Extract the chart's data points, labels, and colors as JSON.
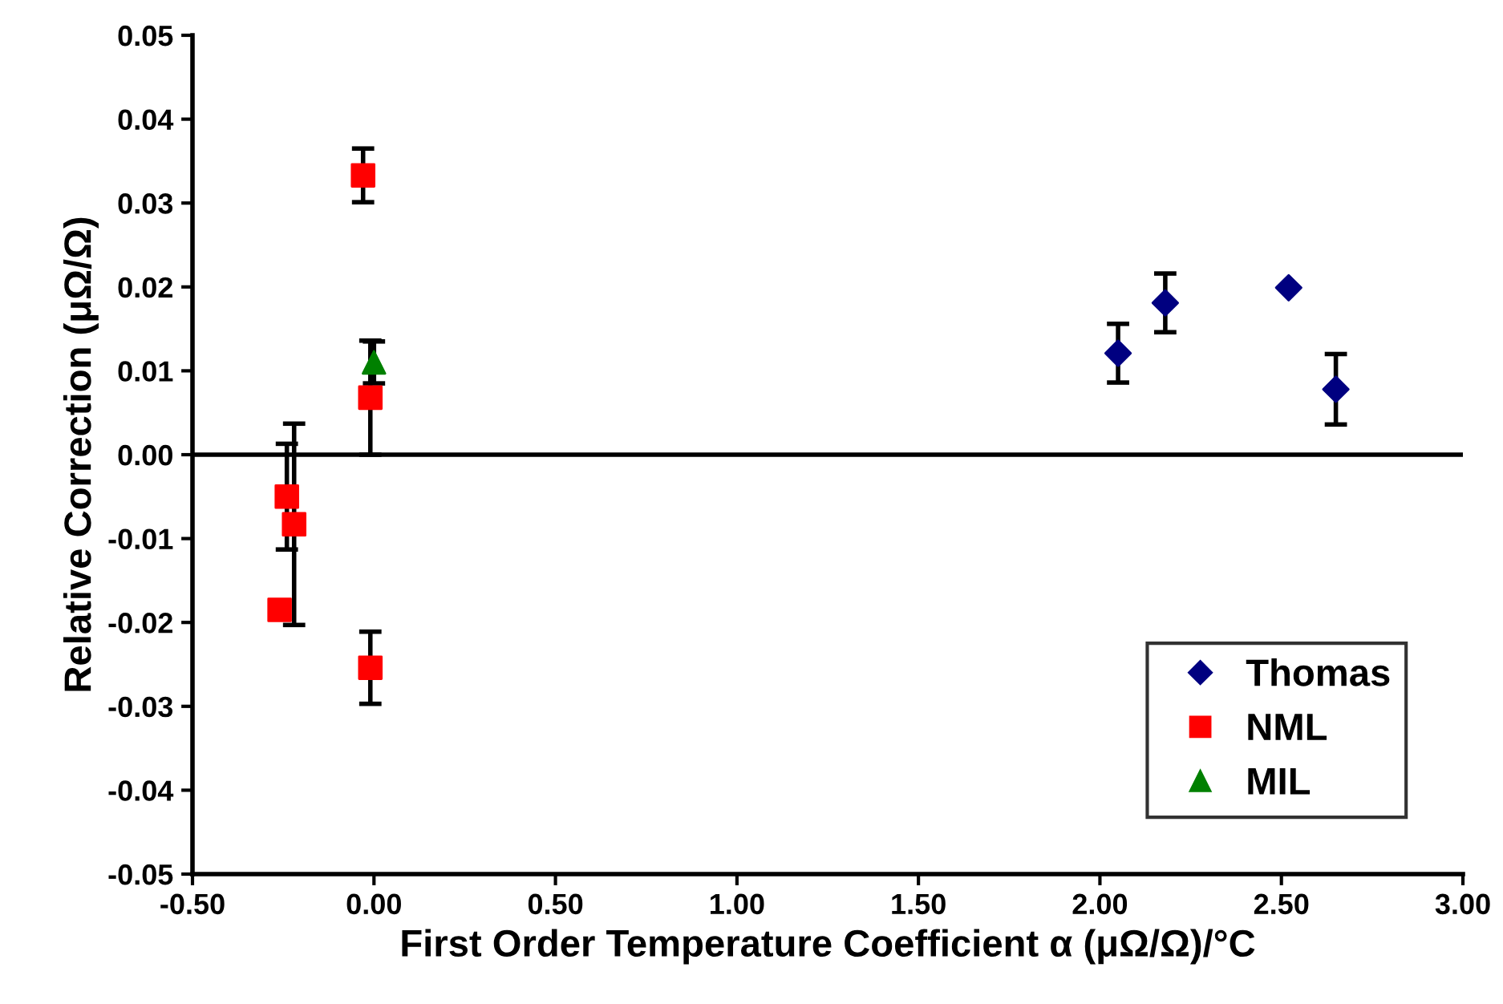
{
  "chart_data": {
    "type": "scatter",
    "xlabel": "First Order Temperature Coefficient α (μΩ/Ω)/°C",
    "ylabel": "Relative Correction (μΩ/Ω)",
    "xlim": [
      -0.5,
      3.0
    ],
    "xticks": [
      {
        "value": -0.5,
        "label": "-0.50"
      },
      {
        "value": 0,
        "label": "0.00"
      },
      {
        "value": 0.5,
        "label": "0.50"
      },
      {
        "value": 1.0,
        "label": "1.00"
      },
      {
        "value": 1.5,
        "label": "1.50"
      },
      {
        "value": 2.0,
        "label": "2.00"
      },
      {
        "value": 2.5,
        "label": "2.50"
      },
      {
        "value": 3.0,
        "label": "3.00"
      }
    ],
    "ylim": [
      -0.05,
      0.05
    ],
    "yticks": [
      {
        "value": -0.05,
        "label": "-0.05"
      },
      {
        "value": -0.04,
        "label": "-0.04"
      },
      {
        "value": -0.03,
        "label": "-0.03"
      },
      {
        "value": -0.02,
        "label": "-0.02"
      },
      {
        "value": -0.01,
        "label": "-0.01"
      },
      {
        "value": 0,
        "label": "0.00"
      },
      {
        "value": 0.01,
        "label": "0.01"
      },
      {
        "value": 0.02,
        "label": "0.02"
      },
      {
        "value": 0.03,
        "label": "0.03"
      },
      {
        "value": 0.04,
        "label": "0.04"
      },
      {
        "value": 0.05,
        "label": "0.05"
      }
    ],
    "grid": false,
    "legend": "bottom right",
    "ref_lines": [
      {
        "axis": "y",
        "value": 0,
        "color": "#000000"
      }
    ],
    "series": [
      {
        "name": "Thomas",
        "color": "#000080",
        "marker": "diamond",
        "x": [
          2.05,
          2.18,
          2.52,
          2.65
        ],
        "values": [
          0.0121,
          0.0181,
          0.0199,
          0.0078
        ],
        "errors": [
          0.0035,
          0.0035,
          null,
          0.0042
        ]
      },
      {
        "name": "NML",
        "color": "#ff0000",
        "marker": "square",
        "x": [
          -0.03,
          -0.01,
          -0.01,
          -0.24,
          -0.22,
          -0.26
        ],
        "values": [
          0.0333,
          0.0068,
          -0.0254,
          -0.005,
          -0.0083,
          -0.0185
        ],
        "errors": [
          0.0032,
          0.0068,
          0.0043,
          0.0063,
          0.012,
          null
        ]
      },
      {
        "name": "MIL",
        "color": "#008000",
        "marker": "triangle",
        "x": [
          0.0
        ],
        "values": [
          0.011
        ],
        "errors": [
          0.0025
        ]
      }
    ]
  }
}
